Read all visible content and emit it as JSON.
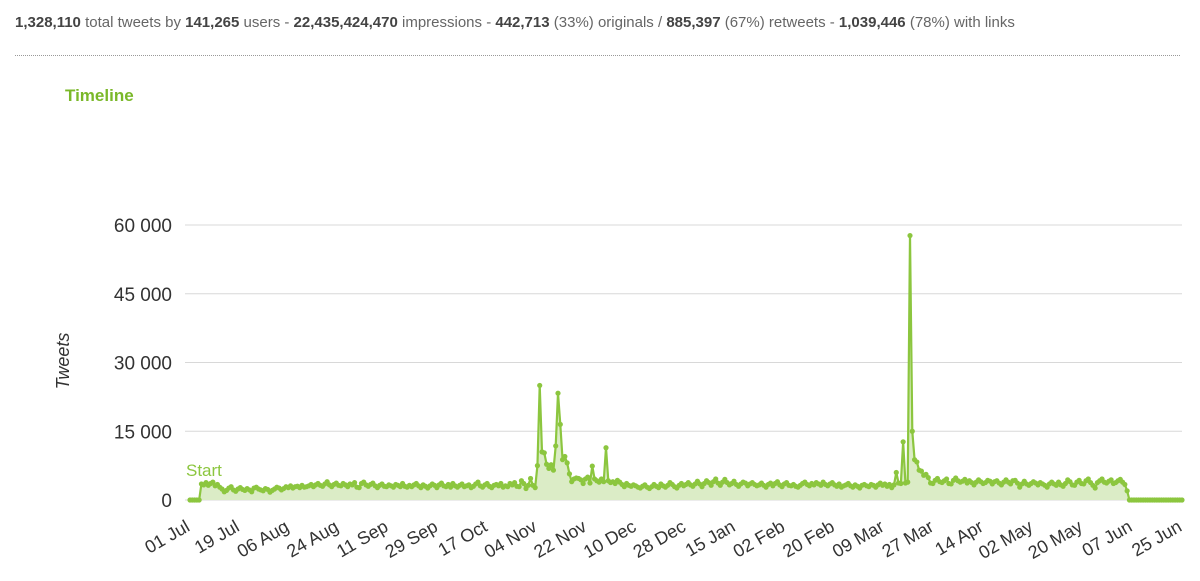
{
  "stats": {
    "total_tweets": "1,328,110",
    "t1": " total tweets by ",
    "users": "141,265",
    "t2": " users - ",
    "impressions": "22,435,424,470",
    "t3": " impressions - ",
    "originals": "442,713",
    "t4": " (33%) originals / ",
    "retweets": "885,397",
    "t5": " (67%) retweets - ",
    "links": "1,039,446",
    "t6": " (78%) with links"
  },
  "chart_data": {
    "type": "area",
    "title": "Timeline",
    "ylabel": "Tweets",
    "xlabel": "",
    "ylim": [
      0,
      60000
    ],
    "yticks": [
      0,
      15000,
      30000,
      45000,
      60000
    ],
    "ytick_labels": [
      "0",
      "15 000",
      "30 000",
      "45 000",
      "60 000"
    ],
    "xtick_labels": [
      "01 Jul",
      "19 Jul",
      "06 Aug",
      "24 Aug",
      "11 Sep",
      "29 Sep",
      "17 Oct",
      "04 Nov",
      "22 Nov",
      "10 Dec",
      "28 Dec",
      "15 Jan",
      "02 Feb",
      "20 Feb",
      "09 Mar",
      "27 Mar",
      "14 Apr",
      "02 May",
      "20 May",
      "07 Jun",
      "25 Jun"
    ],
    "grid": true,
    "annotation": "Start",
    "color": "#8cc63f",
    "fill": "#dbecc6",
    "series": [
      {
        "values": [
          0,
          0,
          0,
          0,
          0,
          3500,
          3300,
          3800,
          3200,
          3600,
          3900,
          3100,
          3400,
          2800,
          2400,
          1800,
          2100,
          2600,
          2900,
          2200,
          1900,
          2400,
          2700,
          2300,
          2100,
          2500,
          2200,
          1800,
          2600,
          2800,
          2400,
          2200,
          2000,
          2500,
          2300,
          1700,
          2100,
          2400,
          2800,
          2600,
          2200,
          2500,
          2900,
          2700,
          3100,
          2600,
          2900,
          3000,
          2700,
          3200,
          2800,
          2900,
          3100,
          3400,
          2900,
          3300,
          3600,
          3200,
          3000,
          3500,
          4000,
          3300,
          2900,
          3400,
          3700,
          3200,
          3100,
          3600,
          3300,
          2900,
          3500,
          3300,
          3800,
          2800,
          2700,
          3600,
          3900,
          3300,
          3000,
          3400,
          3700,
          3100,
          2700,
          3200,
          3500,
          3000,
          2900,
          3300,
          3100,
          2800,
          3400,
          3200,
          2900,
          3600,
          3000,
          2800,
          3200,
          2900,
          3300,
          3600,
          3100,
          2700,
          3300,
          3000,
          2600,
          3100,
          3500,
          3200,
          2700,
          3300,
          3700,
          3100,
          2900,
          3400,
          2800,
          3600,
          3100,
          2800,
          3200,
          3500,
          2900,
          3100,
          3300,
          2700,
          3000,
          3500,
          3900,
          3100,
          2800,
          3300,
          3600,
          3000,
          2700,
          3200,
          3400,
          3100,
          3600,
          2800,
          3100,
          2900,
          3600,
          3300,
          3800,
          3000,
          2900,
          4200,
          3600,
          2500,
          3200,
          4700,
          3200,
          2700,
          7500,
          25000,
          10500,
          10300,
          7800,
          6900,
          7700,
          6500,
          11800,
          23300,
          16500,
          8800,
          9500,
          8100,
          5700,
          4000,
          4600,
          4800,
          4700,
          4400,
          3600,
          4600,
          5000,
          3700,
          7400,
          4600,
          4200,
          3900,
          4600,
          4000,
          11400,
          4200,
          3800,
          4000,
          3600,
          4300,
          3900,
          3400,
          2900,
          3600,
          3200,
          3000,
          3300,
          3100,
          2800,
          2600,
          3000,
          3300,
          2800,
          2500,
          2900,
          3400,
          3000,
          2700,
          3500,
          3100,
          2800,
          3200,
          3800,
          3400,
          2900,
          2600,
          3200,
          3600,
          3100,
          3400,
          3800,
          3300,
          3000,
          3500,
          4100,
          3500,
          2900,
          3600,
          4200,
          3800,
          3200,
          4000,
          4600,
          3700,
          3200,
          3900,
          4500,
          3800,
          3300,
          3600,
          4100,
          3400,
          3000,
          3500,
          3900,
          3700,
          3100,
          3500,
          3800,
          3400,
          3100,
          3300,
          3700,
          3200,
          2800,
          3400,
          3700,
          3100,
          3600,
          4000,
          3300,
          2900,
          3500,
          3800,
          3200,
          3100,
          3400,
          3000,
          2800,
          3200,
          3600,
          3900,
          3400,
          3100,
          3600,
          3300,
          3800,
          3500,
          3200,
          3900,
          3400,
          3100,
          3500,
          3800,
          3300,
          3000,
          3500,
          2800,
          3100,
          3300,
          3600,
          3100,
          2800,
          3300,
          3000,
          2600,
          3200,
          3400,
          3100,
          2900,
          3400,
          3200,
          2800,
          3300,
          3700,
          3200,
          3500,
          3000,
          3400,
          2700,
          3300,
          6000,
          3700,
          3600,
          12700,
          3700,
          3900,
          57700,
          15000,
          8800,
          8300,
          6500,
          6300,
          5400,
          5600,
          4900,
          3700,
          3600,
          4300,
          4700,
          4000,
          3800,
          4200,
          4600,
          3600,
          3500,
          4300,
          4800,
          4200,
          3900,
          4100,
          4500,
          3700,
          4200,
          3800,
          3300,
          3900,
          4400,
          4000,
          3600,
          3800,
          4300,
          4100,
          3500,
          4000,
          4200,
          3700,
          3300,
          3900,
          4400,
          3900,
          3500,
          4200,
          4300,
          3700,
          2800,
          3500,
          4100,
          3500,
          3200,
          3600,
          4000,
          3700,
          3300,
          3800,
          3500,
          3200,
          2800,
          3500,
          3900,
          3500,
          3200,
          3900,
          3300,
          3000,
          3600,
          4400,
          4000,
          3300,
          3200,
          3900,
          4300,
          3600,
          3500,
          4200,
          4600,
          3800,
          3200,
          2600,
          3800,
          4200,
          4600,
          3900,
          3700,
          4100,
          4400,
          3600,
          3800,
          4200,
          4500,
          3900,
          3400,
          2000,
          0,
          0,
          0,
          0,
          0,
          0,
          0,
          0,
          0,
          0,
          0,
          0,
          0,
          0,
          0,
          0,
          0,
          0,
          0,
          0,
          0,
          0,
          0,
          0
        ]
      }
    ]
  }
}
